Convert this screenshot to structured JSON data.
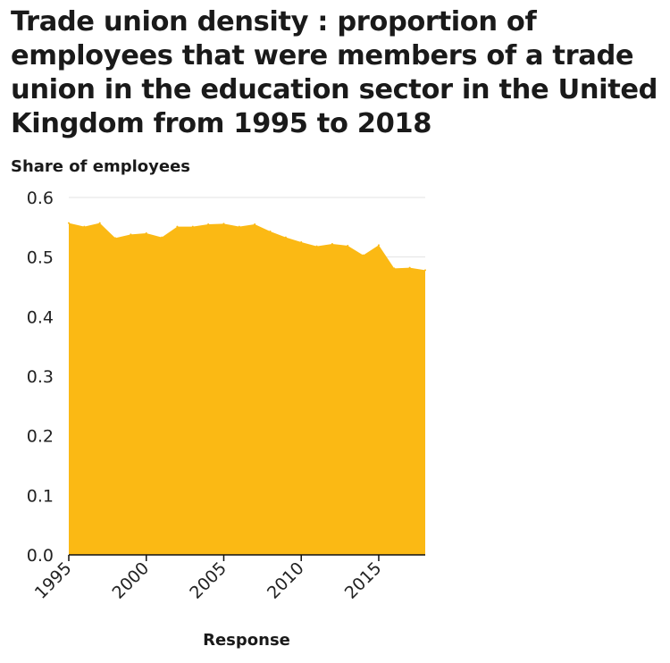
{
  "chart_data": {
    "type": "area",
    "title": "Trade union density : proportion of employees that were members of a trade union in the education sector in the United Kingdom from 1995 to 2018",
    "xlabel": "Response",
    "ylabel": "Share of employees",
    "xlim": [
      1995,
      2018
    ],
    "ylim": [
      0,
      0.6
    ],
    "x_ticks": [
      1995,
      2000,
      2005,
      2010,
      2015
    ],
    "y_ticks": [
      "0.0",
      "0.1",
      "0.2",
      "0.3",
      "0.4",
      "0.5",
      "0.6"
    ],
    "grid": true,
    "x": [
      1995,
      1996,
      1997,
      1998,
      1999,
      2000,
      2001,
      2002,
      2003,
      2004,
      2005,
      2006,
      2007,
      2008,
      2009,
      2010,
      2011,
      2012,
      2013,
      2014,
      2015,
      2016,
      2017,
      2018
    ],
    "values": [
      0.557,
      0.551,
      0.557,
      0.532,
      0.538,
      0.54,
      0.533,
      0.551,
      0.551,
      0.555,
      0.556,
      0.551,
      0.555,
      0.543,
      0.533,
      0.525,
      0.518,
      0.522,
      0.519,
      0.503,
      0.52,
      0.481,
      0.482,
      0.478
    ],
    "color": "#fbb914"
  }
}
